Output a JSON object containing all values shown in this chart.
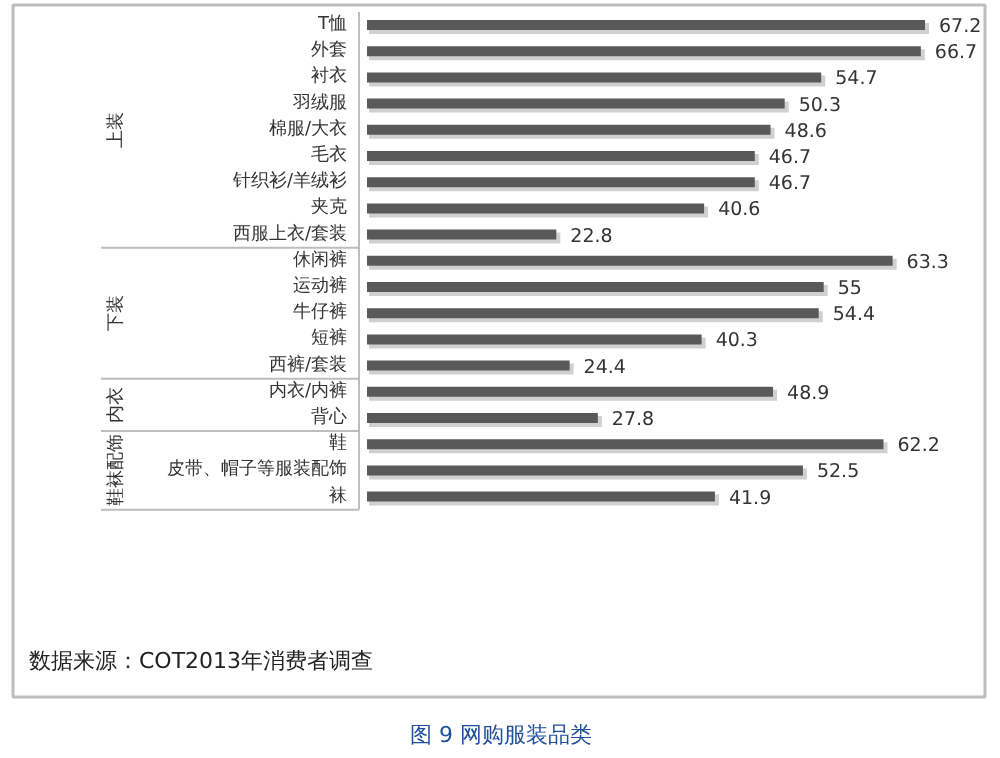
{
  "chart_data": {
    "type": "bar",
    "orientation": "horizontal",
    "categories": [
      "T恤",
      "外套",
      "衬衣",
      "羽绒服",
      "棉服/大衣",
      "毛衣",
      "针织衫/羊绒衫",
      "夹克",
      "西服上衣/套装",
      "休闲裤",
      "运动裤",
      "牛仔裤",
      "短裤",
      "西裤/套装",
      "内衣/内裤",
      "背心",
      "鞋",
      "皮带、帽子等服装配饰",
      "袜"
    ],
    "values": [
      67.2,
      66.7,
      54.7,
      50.3,
      48.6,
      46.7,
      46.7,
      40.6,
      22.8,
      63.3,
      55,
      54.4,
      40.3,
      24.4,
      48.9,
      27.8,
      62.2,
      52.5,
      41.9
    ],
    "color": "#595959",
    "data_labels": true,
    "grid": false,
    "title": "图 9 网购服装品类",
    "annotations": [
      "上装",
      "下装",
      "内衣",
      "鞋袜配饰",
      "数据来源：COT2013年消费者调查"
    ]
  }
}
